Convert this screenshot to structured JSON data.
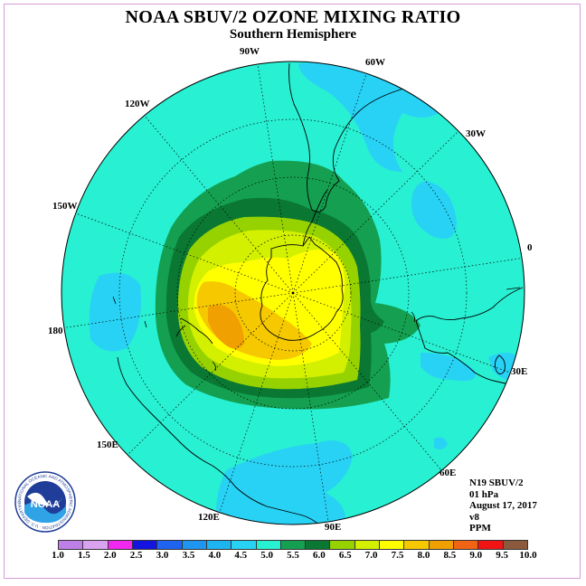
{
  "title": "NOAA SBUV/2 OZONE MIXING RATIO",
  "subtitle": "Southern Hemisphere",
  "longitude_labels": [
    "90W",
    "60W",
    "30W",
    "0",
    "30E",
    "60E",
    "90E",
    "120E",
    "150E",
    "180",
    "150W",
    "120W"
  ],
  "info": {
    "satellite": "N19 SBUV/2",
    "pressure": "01 hPa",
    "date": "August 17, 2017",
    "version": "v8",
    "units": "PPM"
  },
  "logo": {
    "text": "NOAA",
    "ring_text": "NATIONAL OCEANIC AND ATMOSPHERIC ADMINISTRATION · U.S. DEPARTMENT OF COMMERCE"
  },
  "colorbar": {
    "levels": [
      "1.0",
      "1.5",
      "2.0",
      "2.5",
      "3.0",
      "3.5",
      "4.0",
      "4.5",
      "5.0",
      "5.5",
      "6.0",
      "6.5",
      "7.0",
      "7.5",
      "8.0",
      "8.5",
      "9.0",
      "9.5",
      "10.0"
    ],
    "colors": [
      "#bf7fe8",
      "#d9a3f0",
      "#f028f0",
      "#1414e0",
      "#1e64f0",
      "#1e96f0",
      "#1eb4f0",
      "#28d2f5",
      "#28f0d2",
      "#14a050",
      "#0a7832",
      "#96d200",
      "#d2f000",
      "#ffff00",
      "#f5c800",
      "#f0a000",
      "#f06414",
      "#f01414",
      "#8b5a3c"
    ]
  },
  "map_legend_colors": {
    "cyan_bg": "#28f0d2",
    "light_blue": "#28d2f5",
    "green": "#14a050",
    "dark_green": "#0a7832",
    "lime": "#96d200",
    "yellow_green": "#d2f000",
    "yellow": "#ffff00",
    "gold": "#f5c800",
    "orange": "#f0a000"
  }
}
